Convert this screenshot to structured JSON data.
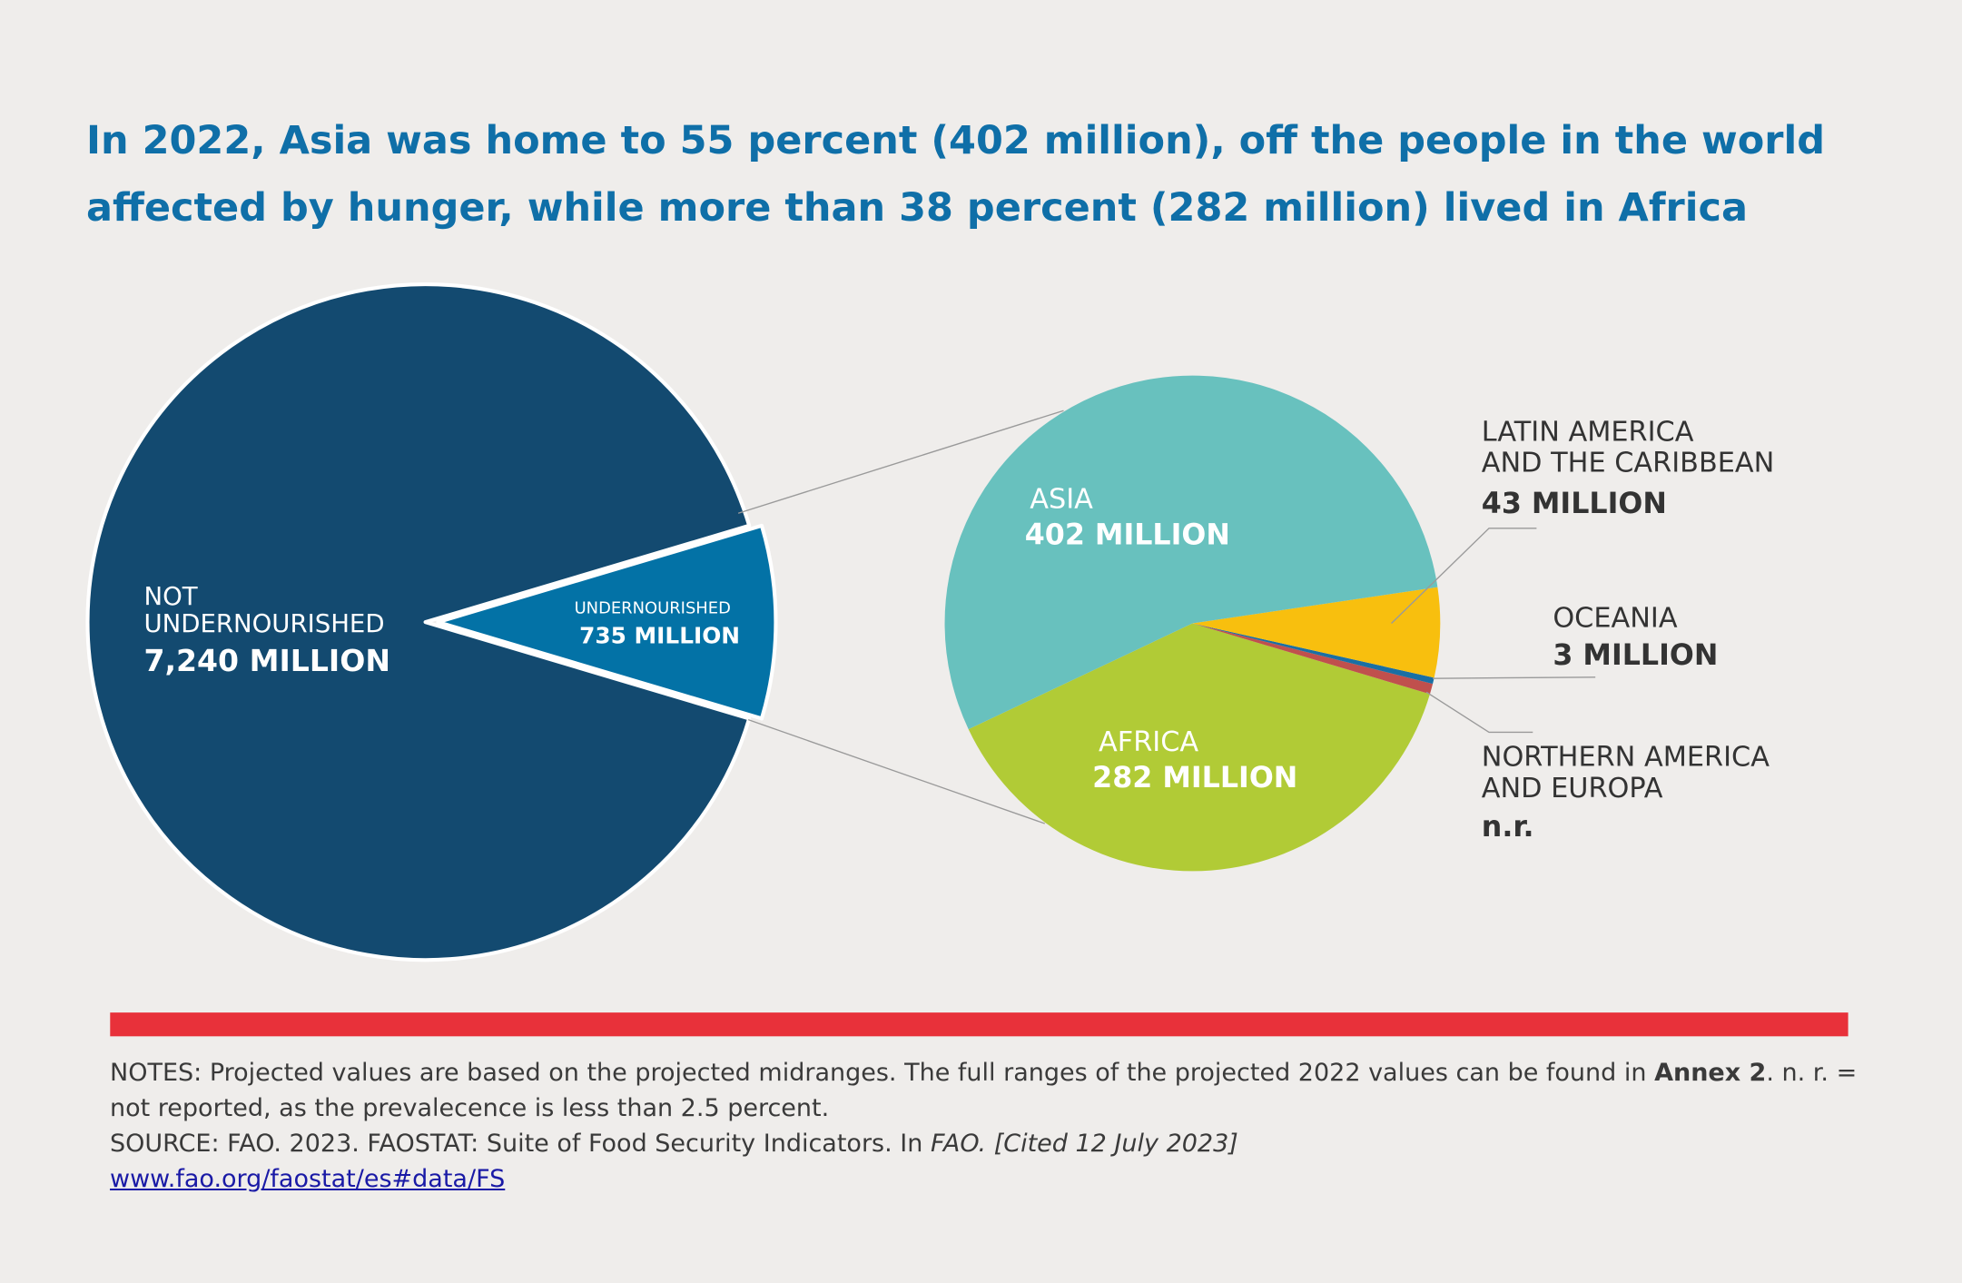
{
  "title": "In 2022, Asia was home to 55 percent (402 million), off the people in the world affected by hunger, while more than 38 percent (282 million) lived in Africa",
  "chart_data": [
    {
      "type": "pie",
      "categories": [
        "NOT UNDERNOURISHED",
        "UNDERNOURISHED"
      ],
      "values": [
        7240,
        735
      ],
      "value_labels": [
        "7,240 MILLION",
        "735 MILLION"
      ],
      "colors": [
        "#134a70",
        "#0372a6"
      ]
    },
    {
      "type": "pie",
      "categories": [
        "ASIA",
        "LATIN AMERICA AND THE CARIBBEAN",
        "OCEANIA",
        "NORTHERN AMERICA AND EUROPA",
        "AFRICA"
      ],
      "values": [
        402,
        43,
        3,
        5,
        282
      ],
      "value_labels": [
        "402 MILLION",
        "43 MILLION",
        "3 MILLION",
        "n.r.",
        "282 MILLION"
      ],
      "colors": [
        "#68c1be",
        "#f8bf0e",
        "#1a6fa4",
        "#c0504d",
        "#b1cb36"
      ]
    }
  ],
  "notes": {
    "text1": "NOTES: Projected values are based on the projected midranges. The full ranges of the projected 2022 values can be found in ",
    "bold": "Annex 2",
    "text2": ". n. r. = not reported, as the prevalecence is less than 2.5 percent.",
    "source": "SOURCE: FAO. 2023. FAOSTAT: Suite of Food Security Indicators. In ",
    "italic": "FAO. [Cited 12 July 2023]",
    "link": "www.fao.org/faostat/es#data/FS"
  }
}
